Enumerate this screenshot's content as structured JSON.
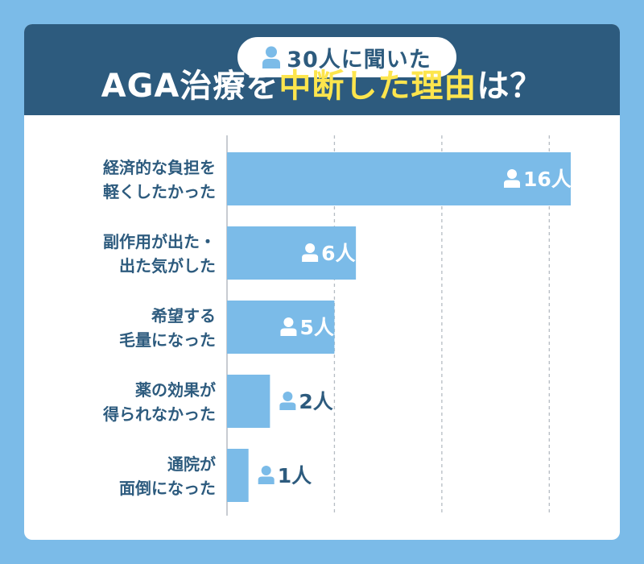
{
  "header": {
    "badge_text": "30人に聞いた",
    "title_before": "AGA治療を",
    "title_highlight": "中断した理由",
    "title_after": "は？"
  },
  "colors": {
    "background": "#7bbbe8",
    "header": "#2d5b7e",
    "bar": "#7bbbe8",
    "label": "#2d5b7e",
    "highlight": "#fde54d"
  },
  "chart_data": {
    "type": "bar",
    "orientation": "horizontal",
    "unit": "人",
    "xlim": [
      0,
      16
    ],
    "grid": true,
    "categories": [
      [
        "経済的な負担を",
        "軽くしたかった"
      ],
      [
        "副作用が出た・",
        "出た気がした"
      ],
      [
        "希望する",
        "毛量になった"
      ],
      [
        "薬の効果が",
        "得られなかった"
      ],
      [
        "通院が",
        "面倒になった"
      ]
    ],
    "values": [
      16,
      6,
      5,
      2,
      1
    ]
  }
}
